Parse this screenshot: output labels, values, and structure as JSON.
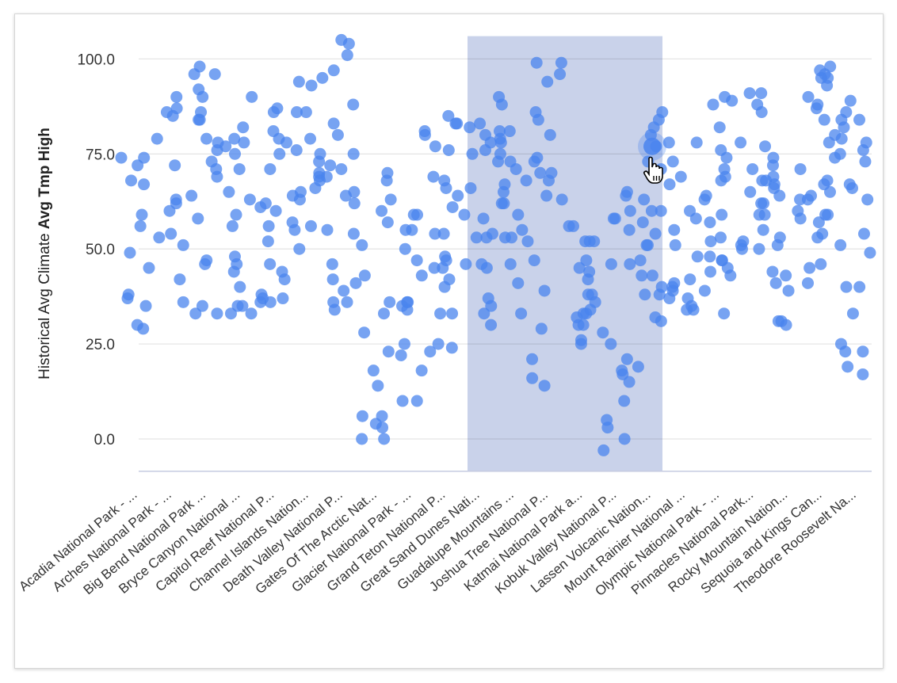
{
  "chart_data": {
    "type": "scatter",
    "ylabel_prefix": "Historical Avg Climate ",
    "ylabel_bold": "Avg Tmp High",
    "ylim": [
      -8.5,
      106
    ],
    "yticks": [
      "0.0",
      "25.0",
      "50.0",
      "75.0",
      "100.0"
    ],
    "ytick_values": [
      0,
      25,
      50,
      75,
      100
    ],
    "grid": true,
    "point_color": "#4a84ee",
    "highlight_band_color": "#c9d2ea",
    "highlight_band_categories": [
      10,
      15
    ],
    "hovered_point": {
      "category": 15,
      "value": 77
    },
    "categories": [
      "Acadia National Park - ...",
      "Arches National Park - ...",
      "Big Bend National Park ...",
      "Bryce Canyon National ...",
      "Capitol Reef National P...",
      "Channel Islands Nation...",
      "Death Valley National P...",
      "Gates Of The Arctic Nat...",
      "Glacier National Park - ...",
      "Grand Teton National P...",
      "Great Sand Dunes Nati...",
      "Guadalupe Mountains ...",
      "Joshua Tree National P...",
      "Katmai National Park a...",
      "Kobuk Valley National P...",
      "Lassen Volcanic Nation...",
      "Mount Rainier National ...",
      "Olympic National Park - ...",
      "Pinnacles National Park...",
      "Rocky Mountain Nation...",
      "Sequoia and Kings Can...",
      "Theodore Roosevelt Na..."
    ],
    "values": [
      [
        74,
        45,
        49,
        37,
        29,
        30,
        68,
        67,
        74,
        72,
        59,
        56,
        35,
        38
      ],
      [
        86,
        87,
        90,
        79,
        63,
        60,
        51,
        42,
        53,
        54,
        36,
        62,
        72,
        85
      ],
      [
        76,
        69,
        86,
        84,
        96,
        98,
        96,
        92,
        90,
        84,
        78,
        79,
        73,
        71,
        64,
        58,
        47,
        46,
        35,
        33,
        33
      ],
      [
        77,
        75,
        79,
        78,
        90,
        71,
        65,
        59,
        56,
        48,
        46,
        44,
        40,
        35,
        33,
        33,
        35,
        63,
        82
      ],
      [
        87,
        86,
        81,
        79,
        78,
        71,
        75,
        62,
        60,
        56,
        52,
        46,
        44,
        42,
        38,
        37,
        36,
        36,
        37,
        61
      ],
      [
        95,
        94,
        93,
        86,
        86,
        79,
        76,
        75,
        73,
        70,
        69,
        68,
        66,
        65,
        64,
        63,
        55,
        57,
        56,
        50
      ],
      [
        104,
        105,
        101,
        97,
        88,
        83,
        80,
        75,
        72,
        71,
        69,
        65,
        64,
        62,
        55,
        54,
        46,
        41,
        39,
        36,
        34,
        36,
        42
      ],
      [
        14,
        6,
        0,
        6,
        3,
        4,
        0,
        28,
        23,
        43,
        60,
        57,
        51,
        70,
        68,
        63,
        36,
        33,
        18
      ],
      [
        10,
        10,
        18,
        36,
        35,
        34,
        43,
        55,
        55,
        59,
        59,
        50,
        47,
        36,
        22,
        25,
        81,
        80
      ],
      [
        85,
        83,
        83,
        77,
        76,
        69,
        68,
        66,
        61,
        64,
        54,
        54,
        45,
        45,
        42,
        48,
        47,
        40,
        33,
        33,
        24,
        23,
        25
      ],
      [
        83,
        82,
        76,
        75,
        66,
        58,
        53,
        46,
        45,
        37,
        35,
        30,
        33,
        54,
        59,
        53,
        46,
        80,
        78
      ],
      [
        90,
        88,
        79,
        78,
        75,
        73,
        71,
        68,
        65,
        62,
        62,
        59,
        53,
        53,
        52,
        46,
        41,
        33,
        81,
        73,
        81,
        67,
        55
      ],
      [
        99,
        99,
        96,
        94,
        86,
        84,
        80,
        74,
        73,
        70,
        70,
        68,
        64,
        63,
        47,
        39,
        29,
        21,
        16,
        14
      ],
      [
        56,
        56,
        52,
        52,
        44,
        45,
        38,
        36,
        34,
        33,
        33,
        32,
        30,
        26,
        25,
        30,
        42,
        47,
        52,
        38
      ],
      [
        65,
        64,
        60,
        58,
        58,
        55,
        46,
        46,
        28,
        25,
        21,
        18,
        17,
        15,
        10,
        5,
        3,
        0,
        -3
      ],
      [
        86,
        84,
        82,
        77,
        80,
        73,
        71,
        60,
        60,
        57,
        54,
        51,
        51,
        47,
        43,
        43,
        40,
        38,
        38,
        32,
        31,
        19,
        63
      ],
      [
        78,
        78,
        73,
        69,
        67,
        60,
        58,
        55,
        51,
        48,
        42,
        41,
        40,
        37,
        37,
        34,
        34,
        35,
        39
      ],
      [
        88,
        90,
        89,
        82,
        76,
        74,
        71,
        69,
        68,
        64,
        63,
        59,
        57,
        53,
        52,
        48,
        47,
        47,
        45,
        44,
        43,
        39,
        33
      ],
      [
        91,
        91,
        88,
        86,
        78,
        77,
        71,
        68,
        65,
        62,
        62,
        59,
        59,
        55,
        52,
        50,
        50,
        51,
        68
      ],
      [
        71,
        69,
        66,
        64,
        63,
        60,
        58,
        53,
        51,
        44,
        43,
        39,
        41,
        31,
        30,
        31,
        74,
        72,
        67
      ],
      [
        96,
        97,
        98,
        95,
        95,
        93,
        88,
        84,
        80,
        78,
        74,
        68,
        67,
        65,
        64,
        63,
        59,
        59,
        57,
        54,
        53,
        46,
        45,
        41,
        90,
        87
      ],
      [
        89,
        86,
        84,
        82,
        79,
        75,
        73,
        78,
        84,
        76,
        67,
        66,
        63,
        54,
        51,
        49,
        40,
        40,
        33,
        25,
        23,
        23,
        17,
        19
      ]
    ]
  }
}
